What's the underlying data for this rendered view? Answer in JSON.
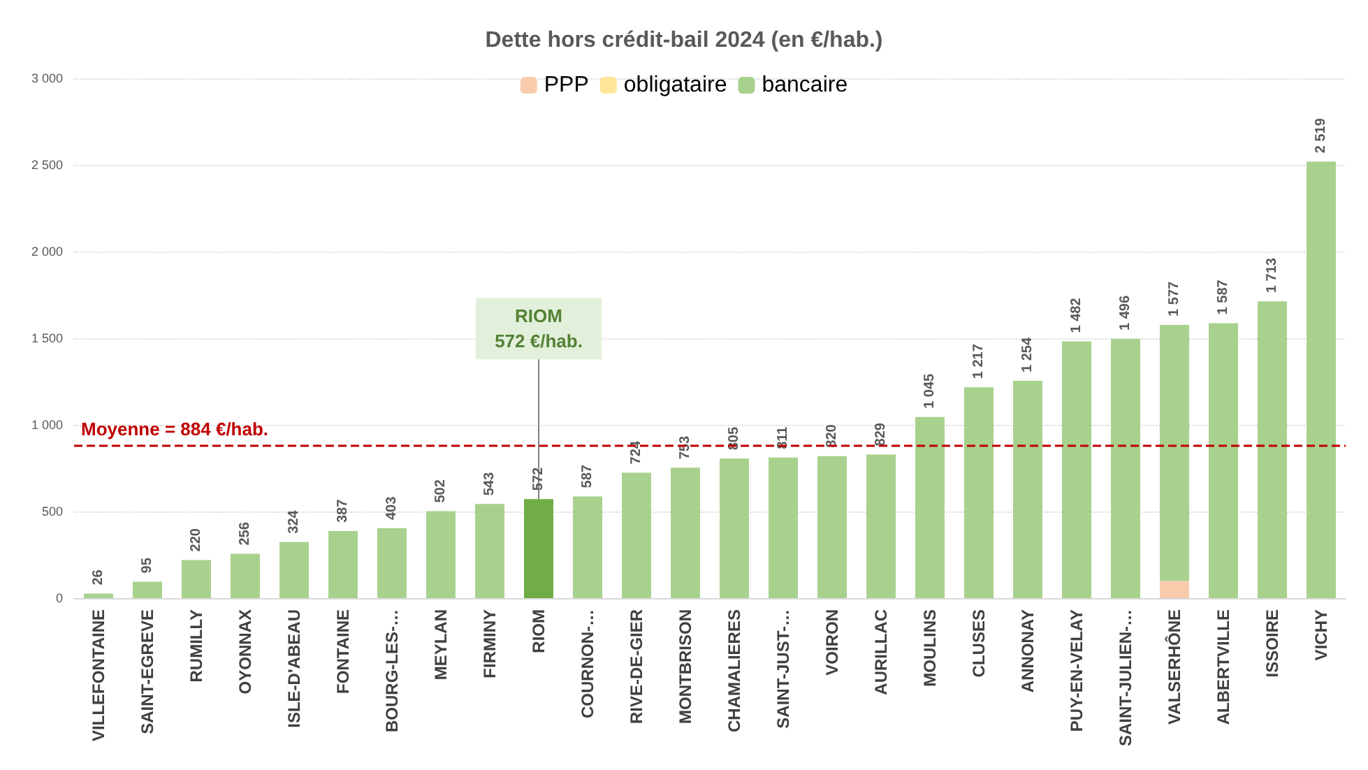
{
  "chart_data": {
    "type": "bar",
    "title": "Dette hors crédit-bail 2024 (en €/hab.)",
    "stacked": true,
    "categories": [
      "VILLEFONTAINE",
      "SAINT-EGREVE",
      "RUMILLY",
      "OYONNAX",
      "ISLE-D'ABEAU",
      "FONTAINE",
      "BOURG-LES-…",
      "MEYLAN",
      "FIRMINY",
      "RIOM",
      "COURNON-…",
      "RIVE-DE-GIER",
      "MONTBRISON",
      "CHAMALIERES",
      "SAINT-JUST-…",
      "VOIRON",
      "AURILLAC",
      "MOULINS",
      "CLUSES",
      "ANNONAY",
      "PUY-EN-VELAY",
      "SAINT-JULIEN-…",
      "VALSERHÔNE",
      "ALBERTVILLE",
      "ISSOIRE",
      "VICHY"
    ],
    "series": [
      {
        "name": "PPP",
        "color": "#f8cbad",
        "values": [
          null,
          null,
          null,
          null,
          null,
          null,
          null,
          null,
          null,
          null,
          null,
          null,
          null,
          null,
          null,
          null,
          null,
          null,
          null,
          null,
          null,
          null,
          100,
          null,
          null,
          null
        ]
      },
      {
        "name": "obligataire",
        "color": "#ffe699",
        "values": [
          null,
          null,
          null,
          null,
          null,
          null,
          null,
          null,
          null,
          null,
          null,
          null,
          null,
          null,
          null,
          null,
          null,
          null,
          null,
          null,
          null,
          null,
          null,
          null,
          null,
          null
        ]
      },
      {
        "name": "bancaire",
        "color": "#a9d18e",
        "colors": [
          "#a9d18e",
          "#a9d18e",
          "#a9d18e",
          "#a9d18e",
          "#a9d18e",
          "#a9d18e",
          "#a9d18e",
          "#a9d18e",
          "#a9d18e",
          "#70ad47",
          "#a9d18e",
          "#a9d18e",
          "#a9d18e",
          "#a9d18e",
          "#a9d18e",
          "#a9d18e",
          "#a9d18e",
          "#a9d18e",
          "#a9d18e",
          "#a9d18e",
          "#a9d18e",
          "#a9d18e",
          "#a9d18e",
          "#a9d18e",
          "#a9d18e",
          "#a9d18e"
        ],
        "values": [
          26,
          95,
          220,
          256,
          324,
          387,
          403,
          502,
          543,
          572,
          587,
          724,
          753,
          805,
          811,
          820,
          829,
          1045,
          1217,
          1254,
          1482,
          1496,
          1477,
          1587,
          1713,
          2519
        ]
      }
    ],
    "totals": [
      "26",
      "95",
      "220",
      "256",
      "324",
      "387",
      "403",
      "502",
      "543",
      "572",
      "587",
      "724",
      "753",
      "805",
      "811",
      "820",
      "829",
      "1 045",
      "1 217",
      "1 254",
      "1 482",
      "1 496",
      "1 577",
      "1 587",
      "1 713",
      "2 519"
    ],
    "ylim": [
      0,
      3000
    ],
    "yticks": [
      {
        "value": 0,
        "label": "0"
      },
      {
        "value": 500,
        "label": "500"
      },
      {
        "value": 1000,
        "label": "1 000"
      },
      {
        "value": 1500,
        "label": "1 500"
      },
      {
        "value": 2000,
        "label": "2 000"
      },
      {
        "value": 2500,
        "label": "2 500"
      },
      {
        "value": 3000,
        "label": "3 000"
      }
    ],
    "grid": "y",
    "legend": "top",
    "ref_lines": [
      {
        "axis": "y",
        "value": 884,
        "label": "Moyenne = 884 €/hab.",
        "color": "#c00000",
        "line_style": "dashed"
      }
    ],
    "annotations": [
      {
        "text": "RIOM\n572 €/hab.",
        "x": "RIOM",
        "y": 572
      }
    ]
  }
}
